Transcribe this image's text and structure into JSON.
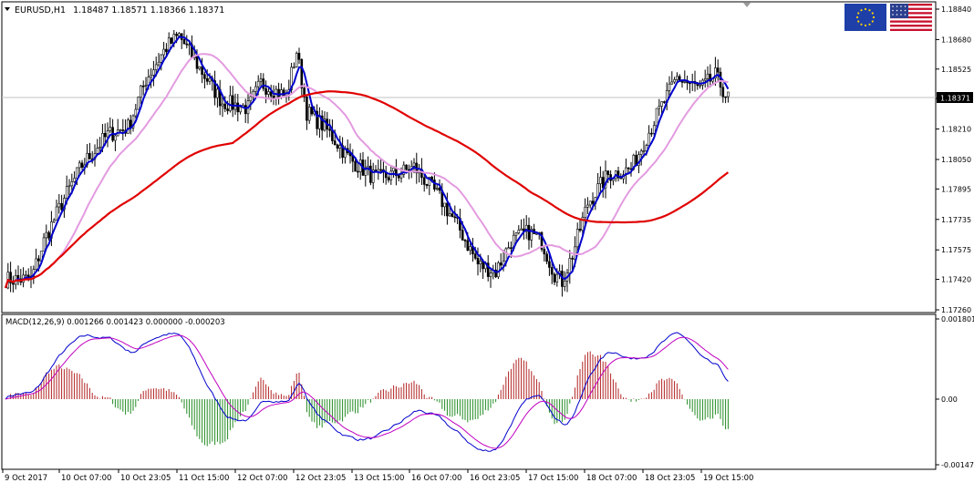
{
  "header": {
    "symbol_timeframe": "EURUSD,H1",
    "ohlc": "1.18487 1.18571 1.18366 1.18371"
  },
  "indicator": {
    "label": "MACD(12,26,9) 0.001266 0.001423 0.000000 -0.000203"
  },
  "flags": {
    "base": "EU",
    "quote": "US"
  },
  "colors": {
    "background": "#ffffff",
    "frame": "#000000",
    "bull_candle": "#000000",
    "bear_candle": "#000000",
    "ma_fast": "#0000cc",
    "ma_mid": "#e39be0",
    "ma_slow": "#e00000",
    "macd_line": "#0000cc",
    "signal_line": "#c000c0",
    "hist_pos": "#b22222",
    "hist_neg": "#228b22",
    "price_line": "#c0c0c0"
  },
  "chart_data": [
    {
      "type": "candlestick",
      "symbol": "EURUSD",
      "timeframe": "H1",
      "y_ticks": [
        "1.18840",
        "1.18680",
        "1.18525",
        "1.18371",
        "1.18210",
        "1.18050",
        "1.17895",
        "1.17735",
        "1.17575",
        "1.17420",
        "1.17260"
      ],
      "ylim": [
        1.1726,
        1.1884
      ],
      "current_price": "1.18371",
      "x_ticks": [
        "9 Oct 2017",
        "10 Oct 07:00",
        "10 Oct 23:05",
        "11 Oct 15:00",
        "12 Oct 07:00",
        "12 Oct 23:05",
        "13 Oct 15:00",
        "16 Oct 07:00",
        "16 Oct 23:05",
        "17 Oct 15:00",
        "18 Oct 07:00",
        "18 Oct 23:05",
        "19 Oct 15:00"
      ],
      "close_anchors": [
        [
          0,
          1.1742
        ],
        [
          10,
          1.1742
        ],
        [
          15,
          1.1762
        ],
        [
          22,
          1.1782
        ],
        [
          30,
          1.1802
        ],
        [
          40,
          1.1818
        ],
        [
          48,
          1.1822
        ],
        [
          55,
          1.1847
        ],
        [
          63,
          1.1864
        ],
        [
          68,
          1.187
        ],
        [
          75,
          1.1855
        ],
        [
          85,
          1.1835
        ],
        [
          95,
          1.1832
        ],
        [
          100,
          1.1845
        ],
        [
          110,
          1.1838
        ],
        [
          114,
          1.1862
        ],
        [
          118,
          1.183
        ],
        [
          125,
          1.1822
        ],
        [
          135,
          1.1805
        ],
        [
          145,
          1.1795
        ],
        [
          155,
          1.1798
        ],
        [
          160,
          1.1801
        ],
        [
          170,
          1.1785
        ],
        [
          178,
          1.1768
        ],
        [
          185,
          1.175
        ],
        [
          192,
          1.1746
        ],
        [
          198,
          1.1762
        ],
        [
          205,
          1.1767
        ],
        [
          210,
          1.1762
        ],
        [
          215,
          1.1745
        ],
        [
          218,
          1.1741
        ],
        [
          222,
          1.1755
        ],
        [
          228,
          1.1782
        ],
        [
          236,
          1.1797
        ],
        [
          245,
          1.18
        ],
        [
          255,
          1.1828
        ],
        [
          263,
          1.1848
        ],
        [
          272,
          1.1842
        ],
        [
          278,
          1.1849
        ],
        [
          283,
          1.1837
        ]
      ],
      "moving_averages": [
        {
          "period": "fast",
          "color": "#0000cc"
        },
        {
          "period": "mid",
          "color": "#e39be0"
        },
        {
          "period": "slow",
          "color": "#e00000"
        }
      ]
    },
    {
      "type": "macd",
      "params": [
        12,
        26,
        9
      ],
      "values": {
        "main": 0.001266,
        "signal": 0.001423,
        "level": 0.0,
        "histogram": -0.000203
      },
      "y_ticks": [
        "0.001801",
        "0.00",
        "-0.001474"
      ],
      "ylim": [
        -0.001474,
        0.001801
      ]
    }
  ]
}
